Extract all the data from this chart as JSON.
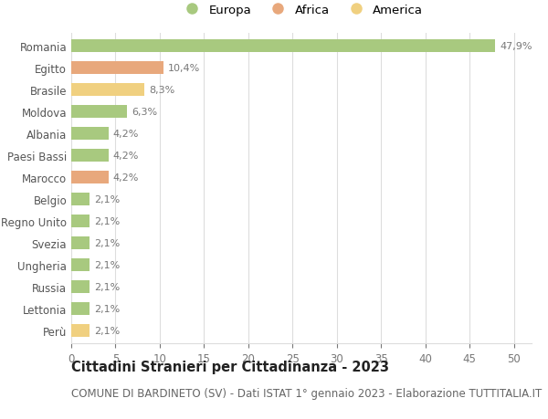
{
  "categories": [
    "Romania",
    "Egitto",
    "Brasile",
    "Moldova",
    "Albania",
    "Paesi Bassi",
    "Marocco",
    "Belgio",
    "Regno Unito",
    "Svezia",
    "Ungheria",
    "Russia",
    "Lettonia",
    "Perù"
  ],
  "values": [
    47.9,
    10.4,
    8.3,
    6.3,
    4.2,
    4.2,
    4.2,
    2.1,
    2.1,
    2.1,
    2.1,
    2.1,
    2.1,
    2.1
  ],
  "continents": [
    "Europa",
    "Africa",
    "America",
    "Europa",
    "Europa",
    "Europa",
    "Africa",
    "Europa",
    "Europa",
    "Europa",
    "Europa",
    "Europa",
    "Europa",
    "America"
  ],
  "colors": {
    "Europa": "#a8c97f",
    "Africa": "#e8a87c",
    "America": "#f0d080"
  },
  "labels": [
    "47,9%",
    "10,4%",
    "8,3%",
    "6,3%",
    "4,2%",
    "4,2%",
    "4,2%",
    "2,1%",
    "2,1%",
    "2,1%",
    "2,1%",
    "2,1%",
    "2,1%",
    "2,1%"
  ],
  "xlim": [
    0,
    52
  ],
  "xticks": [
    0,
    5,
    10,
    15,
    20,
    25,
    30,
    35,
    40,
    45,
    50
  ],
  "title": "Cittadini Stranieri per Cittadinanza - 2023",
  "subtitle": "COMUNE DI BARDINETO (SV) - Dati ISTAT 1° gennaio 2023 - Elaborazione TUTTITALIA.IT",
  "legend_entries": [
    "Europa",
    "Africa",
    "America"
  ],
  "bg_color": "#ffffff",
  "grid_color": "#dddddd",
  "bar_height": 0.6,
  "title_fontsize": 10.5,
  "subtitle_fontsize": 8.5,
  "label_fontsize": 8,
  "tick_fontsize": 8.5,
  "legend_fontsize": 9.5
}
